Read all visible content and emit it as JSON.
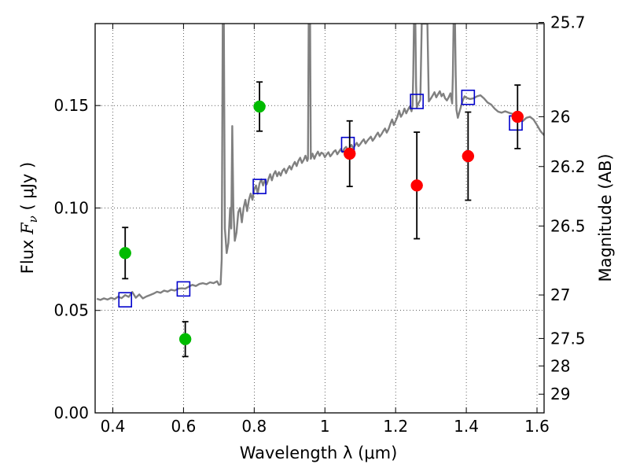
{
  "chart_data": {
    "type": "scatter",
    "xlabel": "Wavelength  λ (μm)",
    "ylabel": {
      "prefix": "Flux  ",
      "symbol": "F",
      "sub": "ν",
      "unit": "  ( μJy )"
    },
    "right_ylabel": "Magnitude (AB)",
    "xlim": [
      0.35,
      1.62
    ],
    "ylim": [
      0.0,
      0.19
    ],
    "grid": true,
    "x_ticks": [
      {
        "value": 0.4,
        "label": "0.4"
      },
      {
        "value": 0.6,
        "label": "0.6"
      },
      {
        "value": 0.8,
        "label": "0.8"
      },
      {
        "value": 1.0,
        "label": "1"
      },
      {
        "value": 1.2,
        "label": "1.2"
      },
      {
        "value": 1.4,
        "label": "1.4"
      },
      {
        "value": 1.6,
        "label": "1.6"
      }
    ],
    "y_ticks": [
      {
        "value": 0.0,
        "label": "0.00"
      },
      {
        "value": 0.05,
        "label": "0.05"
      },
      {
        "value": 0.1,
        "label": "0.10"
      },
      {
        "value": 0.15,
        "label": "0.15"
      }
    ],
    "right_ticks": [
      {
        "label": "25.7",
        "mag": 25.7
      },
      {
        "label": "26",
        "mag": 26.0
      },
      {
        "label": "26.2",
        "mag": 26.2
      },
      {
        "label": "26.5",
        "mag": 26.5
      },
      {
        "label": "27",
        "mag": 27.0
      },
      {
        "label": "27.5",
        "mag": 27.5
      },
      {
        "label": "28",
        "mag": 28.0
      },
      {
        "label": "29",
        "mag": 29.0
      }
    ],
    "series": [
      {
        "kind": "spectrum",
        "color": "#808080",
        "points": [
          [
            0.355,
            0.0557
          ],
          [
            0.365,
            0.0551
          ],
          [
            0.375,
            0.0559
          ],
          [
            0.385,
            0.0553
          ],
          [
            0.395,
            0.0561
          ],
          [
            0.405,
            0.0555
          ],
          [
            0.415,
            0.0567
          ],
          [
            0.425,
            0.056
          ],
          [
            0.435,
            0.0575
          ],
          [
            0.445,
            0.0566
          ],
          [
            0.455,
            0.059
          ],
          [
            0.465,
            0.0562
          ],
          [
            0.475,
            0.0578
          ],
          [
            0.485,
            0.0559
          ],
          [
            0.495,
            0.0568
          ],
          [
            0.505,
            0.0575
          ],
          [
            0.515,
            0.0582
          ],
          [
            0.525,
            0.0591
          ],
          [
            0.535,
            0.0586
          ],
          [
            0.545,
            0.0597
          ],
          [
            0.555,
            0.0592
          ],
          [
            0.565,
            0.0601
          ],
          [
            0.575,
            0.0597
          ],
          [
            0.585,
            0.0606
          ],
          [
            0.595,
            0.0608
          ],
          [
            0.605,
            0.0606
          ],
          [
            0.615,
            0.0616
          ],
          [
            0.625,
            0.0625
          ],
          [
            0.635,
            0.0619
          ],
          [
            0.645,
            0.0629
          ],
          [
            0.655,
            0.0633
          ],
          [
            0.665,
            0.0628
          ],
          [
            0.675,
            0.0637
          ],
          [
            0.685,
            0.0633
          ],
          [
            0.695,
            0.0642
          ],
          [
            0.7,
            0.0625
          ],
          [
            0.705,
            0.0628
          ],
          [
            0.708,
            0.075
          ],
          [
            0.711,
            0.19
          ],
          [
            0.714,
            0.19
          ],
          [
            0.717,
            0.09
          ],
          [
            0.722,
            0.078
          ],
          [
            0.727,
            0.083
          ],
          [
            0.732,
            0.1
          ],
          [
            0.735,
            0.09
          ],
          [
            0.738,
            0.14
          ],
          [
            0.741,
            0.1
          ],
          [
            0.745,
            0.084
          ],
          [
            0.75,
            0.088
          ],
          [
            0.755,
            0.098
          ],
          [
            0.76,
            0.1
          ],
          [
            0.765,
            0.093
          ],
          [
            0.77,
            0.1
          ],
          [
            0.775,
            0.104
          ],
          [
            0.78,
            0.0985
          ],
          [
            0.785,
            0.104
          ],
          [
            0.79,
            0.107
          ],
          [
            0.795,
            0.104
          ],
          [
            0.8,
            0.109
          ],
          [
            0.805,
            0.111
          ],
          [
            0.81,
            0.107
          ],
          [
            0.815,
            0.112
          ],
          [
            0.82,
            0.114
          ],
          [
            0.825,
            0.111
          ],
          [
            0.83,
            0.1135
          ],
          [
            0.835,
            0.1115
          ],
          [
            0.84,
            0.114
          ],
          [
            0.845,
            0.1165
          ],
          [
            0.85,
            0.1135
          ],
          [
            0.855,
            0.1165
          ],
          [
            0.86,
            0.118
          ],
          [
            0.865,
            0.1155
          ],
          [
            0.87,
            0.1175
          ],
          [
            0.875,
            0.1158
          ],
          [
            0.88,
            0.1182
          ],
          [
            0.885,
            0.1192
          ],
          [
            0.89,
            0.117
          ],
          [
            0.895,
            0.119
          ],
          [
            0.9,
            0.1205
          ],
          [
            0.905,
            0.1188
          ],
          [
            0.91,
            0.121
          ],
          [
            0.915,
            0.1225
          ],
          [
            0.92,
            0.1205
          ],
          [
            0.925,
            0.123
          ],
          [
            0.93,
            0.1245
          ],
          [
            0.935,
            0.122
          ],
          [
            0.94,
            0.1235
          ],
          [
            0.945,
            0.1255
          ],
          [
            0.95,
            0.123
          ],
          [
            0.952,
            0.124
          ],
          [
            0.954,
            0.19
          ],
          [
            0.958,
            0.19
          ],
          [
            0.96,
            0.124
          ],
          [
            0.965,
            0.1265
          ],
          [
            0.97,
            0.124
          ],
          [
            0.975,
            0.126
          ],
          [
            0.98,
            0.1275
          ],
          [
            0.985,
            0.1255
          ],
          [
            0.99,
            0.127
          ],
          [
            0.995,
            0.1265
          ],
          [
            1.0,
            0.1248
          ],
          [
            1.005,
            0.1262
          ],
          [
            1.01,
            0.1272
          ],
          [
            1.015,
            0.1252
          ],
          [
            1.02,
            0.1262
          ],
          [
            1.025,
            0.1275
          ],
          [
            1.03,
            0.1282
          ],
          [
            1.035,
            0.1262
          ],
          [
            1.04,
            0.1275
          ],
          [
            1.045,
            0.1288
          ],
          [
            1.05,
            0.1272
          ],
          [
            1.055,
            0.129
          ],
          [
            1.06,
            0.1298
          ],
          [
            1.065,
            0.1282
          ],
          [
            1.07,
            0.1295
          ],
          [
            1.075,
            0.1308
          ],
          [
            1.08,
            0.1292
          ],
          [
            1.085,
            0.1305
          ],
          [
            1.09,
            0.1318
          ],
          [
            1.095,
            0.1302
          ],
          [
            1.1,
            0.1312
          ],
          [
            1.105,
            0.1325
          ],
          [
            1.11,
            0.1335
          ],
          [
            1.115,
            0.1315
          ],
          [
            1.12,
            0.1328
          ],
          [
            1.125,
            0.1338
          ],
          [
            1.13,
            0.1348
          ],
          [
            1.135,
            0.1328
          ],
          [
            1.14,
            0.134
          ],
          [
            1.145,
            0.1355
          ],
          [
            1.15,
            0.1368
          ],
          [
            1.155,
            0.1348
          ],
          [
            1.16,
            0.136
          ],
          [
            1.165,
            0.1375
          ],
          [
            1.17,
            0.1388
          ],
          [
            1.175,
            0.1368
          ],
          [
            1.18,
            0.1385
          ],
          [
            1.185,
            0.141
          ],
          [
            1.19,
            0.1432
          ],
          [
            1.195,
            0.1405
          ],
          [
            1.2,
            0.1425
          ],
          [
            1.205,
            0.1445
          ],
          [
            1.21,
            0.1475
          ],
          [
            1.215,
            0.1445
          ],
          [
            1.22,
            0.146
          ],
          [
            1.225,
            0.1485
          ],
          [
            1.23,
            0.1462
          ],
          [
            1.235,
            0.148
          ],
          [
            1.24,
            0.1495
          ],
          [
            1.245,
            0.1472
          ],
          [
            1.248,
            0.15
          ],
          [
            1.25,
            0.165
          ],
          [
            1.252,
            0.19
          ],
          [
            1.256,
            0.19
          ],
          [
            1.258,
            0.16
          ],
          [
            1.26,
            0.149
          ],
          [
            1.265,
            0.1512
          ],
          [
            1.27,
            0.1528
          ],
          [
            1.274,
            0.19
          ],
          [
            1.282,
            0.19
          ],
          [
            1.286,
            0.19
          ],
          [
            1.29,
            0.19
          ],
          [
            1.294,
            0.152
          ],
          [
            1.3,
            0.1535
          ],
          [
            1.305,
            0.155
          ],
          [
            1.31,
            0.1565
          ],
          [
            1.315,
            0.154
          ],
          [
            1.32,
            0.1555
          ],
          [
            1.325,
            0.157
          ],
          [
            1.33,
            0.1545
          ],
          [
            1.335,
            0.1558
          ],
          [
            1.34,
            0.1535
          ],
          [
            1.345,
            0.1525
          ],
          [
            1.35,
            0.154
          ],
          [
            1.355,
            0.156
          ],
          [
            1.36,
            0.151
          ],
          [
            1.362,
            0.165
          ],
          [
            1.364,
            0.19
          ],
          [
            1.368,
            0.19
          ],
          [
            1.37,
            0.165
          ],
          [
            1.372,
            0.148
          ],
          [
            1.376,
            0.144
          ],
          [
            1.38,
            0.1465
          ],
          [
            1.385,
            0.1495
          ],
          [
            1.39,
            0.1525
          ],
          [
            1.395,
            0.1545
          ],
          [
            1.4,
            0.1538
          ],
          [
            1.41,
            0.1532
          ],
          [
            1.42,
            0.1535
          ],
          [
            1.43,
            0.1545
          ],
          [
            1.44,
            0.155
          ],
          [
            1.45,
            0.1535
          ],
          [
            1.46,
            0.1515
          ],
          [
            1.47,
            0.1505
          ],
          [
            1.48,
            0.1485
          ],
          [
            1.49,
            0.147
          ],
          [
            1.5,
            0.1465
          ],
          [
            1.51,
            0.1472
          ],
          [
            1.52,
            0.1465
          ],
          [
            1.53,
            0.146
          ],
          [
            1.54,
            0.1445
          ],
          [
            1.55,
            0.1428
          ],
          [
            1.56,
            0.1425
          ],
          [
            1.57,
            0.144
          ],
          [
            1.58,
            0.1445
          ],
          [
            1.59,
            0.1432
          ],
          [
            1.6,
            0.1405
          ],
          [
            1.61,
            0.1375
          ],
          [
            1.62,
            0.1355
          ]
        ]
      },
      {
        "kind": "boxes",
        "color": "#0000cc",
        "points": [
          [
            0.435,
            0.0552
          ],
          [
            0.6,
            0.0605
          ],
          [
            0.815,
            0.1105
          ],
          [
            1.065,
            0.131
          ],
          [
            1.26,
            0.152
          ],
          [
            1.405,
            0.154
          ],
          [
            1.54,
            0.1415
          ]
        ]
      },
      {
        "kind": "points-with-errors",
        "color": "#00bb00",
        "points": [
          {
            "x": 0.435,
            "y": 0.078,
            "err": 0.0125
          },
          {
            "x": 0.605,
            "y": 0.036,
            "err": 0.0085
          },
          {
            "x": 0.815,
            "y": 0.1495,
            "err": 0.012
          }
        ]
      },
      {
        "kind": "points-with-errors",
        "color": "#ff0000",
        "points": [
          {
            "x": 1.07,
            "y": 0.1265,
            "err": 0.016
          },
          {
            "x": 1.26,
            "y": 0.111,
            "err": 0.026
          },
          {
            "x": 1.405,
            "y": 0.1253,
            "err": 0.0215
          },
          {
            "x": 1.545,
            "y": 0.1445,
            "err": 0.0155
          }
        ]
      }
    ]
  }
}
